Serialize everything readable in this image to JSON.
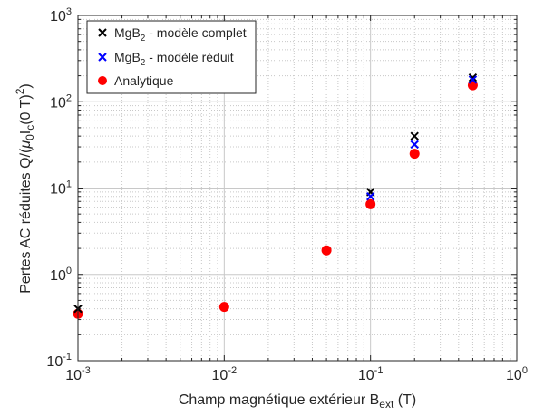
{
  "chart_data": {
    "type": "scatter",
    "x_scale": "log",
    "y_scale": "log",
    "xlim": [
      0.001,
      1
    ],
    "ylim": [
      0.1,
      1000
    ],
    "grid": "major and minor, dotted",
    "legend_position": "top-left",
    "xlabel": {
      "main": "Champ magnétique extérieur B",
      "sub": "ext",
      "tail": " (T)"
    },
    "ylabel": {
      "p1": "Pertes AC réduites Q/(",
      "mu": "μ",
      "sub0": "0",
      "p2": "I",
      "subc": "c",
      "p3": "(0 T)",
      "sup2": "2",
      "p4": ")"
    },
    "x_ticks": [
      {
        "value": 0.001,
        "base": "10",
        "exp": "-3"
      },
      {
        "value": 0.01,
        "base": "10",
        "exp": "-2"
      },
      {
        "value": 0.1,
        "base": "10",
        "exp": "-1"
      },
      {
        "value": 1,
        "base": "10",
        "exp": "0"
      }
    ],
    "y_ticks": [
      {
        "value": 0.1,
        "base": "10",
        "exp": "-1"
      },
      {
        "value": 1,
        "base": "10",
        "exp": "0"
      },
      {
        "value": 10,
        "base": "10",
        "exp": "1"
      },
      {
        "value": 100,
        "base": "10",
        "exp": "2"
      },
      {
        "value": 1000,
        "base": "10",
        "exp": "3"
      }
    ],
    "series": [
      {
        "legend": {
          "pre": "MgB",
          "sub": "2",
          "post": " - modèle complet"
        },
        "marker": "x",
        "color": "#000000",
        "points": [
          {
            "x": 0.001,
            "y": 0.4
          },
          {
            "x": 0.1,
            "y": 9
          },
          {
            "x": 0.2,
            "y": 40
          },
          {
            "x": 0.5,
            "y": 190
          }
        ]
      },
      {
        "legend": {
          "pre": "MgB",
          "sub": "2",
          "post": " - modèle réduit"
        },
        "marker": "x",
        "color": "#0000ff",
        "points": [
          {
            "x": 0.1,
            "y": 8
          },
          {
            "x": 0.2,
            "y": 32
          },
          {
            "x": 0.5,
            "y": 180
          }
        ]
      },
      {
        "legend": {
          "pre": "Analytique",
          "sub": "",
          "post": ""
        },
        "marker": "circle",
        "color": "#ff0000",
        "points": [
          {
            "x": 0.001,
            "y": 0.35
          },
          {
            "x": 0.01,
            "y": 0.42
          },
          {
            "x": 0.05,
            "y": 1.9
          },
          {
            "x": 0.1,
            "y": 6.5
          },
          {
            "x": 0.2,
            "y": 25
          },
          {
            "x": 0.5,
            "y": 155
          }
        ]
      }
    ]
  }
}
